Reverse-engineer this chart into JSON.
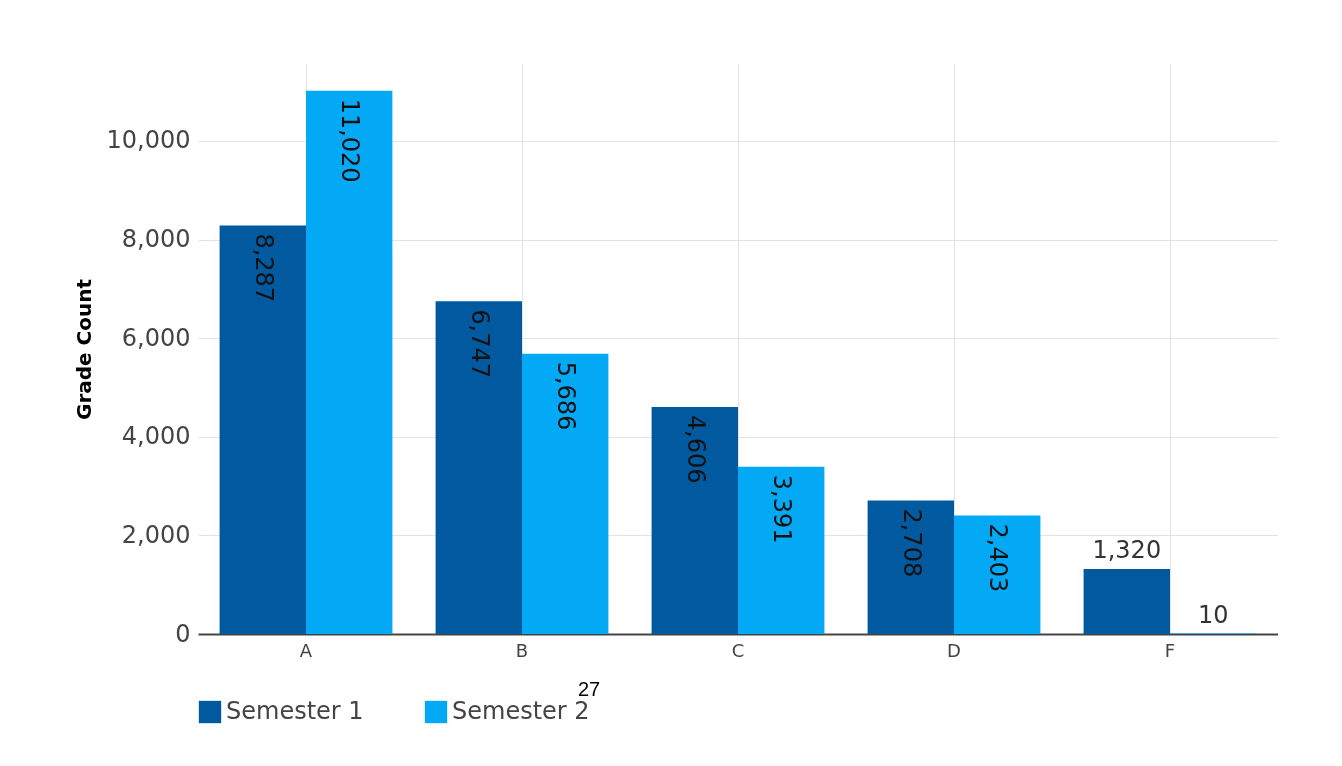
{
  "chart_data": {
    "type": "bar",
    "ylabel": "Grade Count",
    "categories": [
      "A",
      "B",
      "C",
      "D",
      "F"
    ],
    "series": [
      {
        "name": "Semester 1",
        "color": "#015a9f",
        "values": [
          8287,
          6747,
          4606,
          2708,
          1320
        ],
        "value_labels": [
          "8,287",
          "6,747",
          "4,606",
          "2,708",
          "1,320"
        ]
      },
      {
        "name": "Semester 2",
        "color": "#03a9f4",
        "values": [
          11020,
          5686,
          3391,
          2403,
          10
        ],
        "value_labels": [
          "11,020",
          "5,686",
          "3,391",
          "2,403",
          "10"
        ]
      }
    ],
    "ylim": [
      0,
      11560
    ],
    "yticks": [
      0,
      {
        "value": 2000,
        "label": "2,000"
      },
      {
        "value": 4000,
        "label": "4,000"
      },
      {
        "value": 6000,
        "label": "6,000"
      },
      {
        "value": 8000,
        "label": "8,000"
      },
      {
        "value": 10000,
        "label": "10,000"
      }
    ],
    "grid": true,
    "legend": "bottom",
    "annotations": [
      "27"
    ]
  }
}
